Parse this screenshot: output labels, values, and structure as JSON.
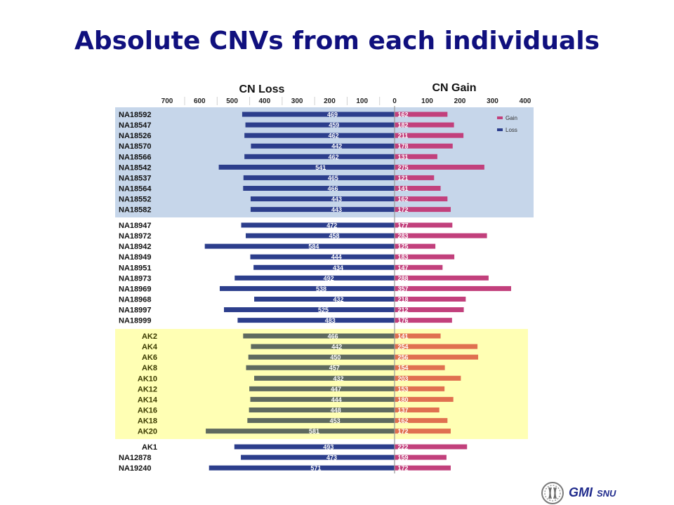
{
  "slide": {
    "title": "Absolute CNVs from each individuals"
  },
  "logo": {
    "gmi": "GMI",
    "snu": "SNU"
  },
  "chart_data": {
    "type": "bar",
    "orientation": "horizontal-diverging",
    "loss_axis_title": "CN Loss",
    "gain_axis_title": "CN Gain",
    "loss_ticks": [
      700,
      600,
      500,
      400,
      300,
      200,
      100
    ],
    "gain_ticks": [
      0,
      100,
      200,
      300,
      400
    ],
    "loss_xlim": [
      700,
      0
    ],
    "gain_xlim": [
      0,
      400
    ],
    "legend": {
      "position": "top-right",
      "entries": [
        "Gain",
        "Loss"
      ]
    },
    "colors": {
      "loss": "#2c3e8c",
      "gain": "#c2407c",
      "ak_loss": "#5f6a5f",
      "ak_gain": "#e07050",
      "group1_bg": "#c6d6ea",
      "group3_bg": "#ffffb4"
    },
    "groups": [
      {
        "rows": [
          {
            "label": "NA18592",
            "loss": 469,
            "gain": 162
          },
          {
            "label": "NA18547",
            "loss": 459,
            "gain": 182
          },
          {
            "label": "NA18526",
            "loss": 462,
            "gain": 211
          },
          {
            "label": "NA18570",
            "loss": 442,
            "gain": 178
          },
          {
            "label": "NA18566",
            "loss": 462,
            "gain": 131
          },
          {
            "label": "NA18542",
            "loss": 541,
            "gain": 275
          },
          {
            "label": "NA18537",
            "loss": 465,
            "gain": 121
          },
          {
            "label": "NA18564",
            "loss": 466,
            "gain": 141
          },
          {
            "label": "NA18552",
            "loss": 443,
            "gain": 162
          },
          {
            "label": "NA18582",
            "loss": 443,
            "gain": 172
          }
        ]
      },
      {
        "rows": [
          {
            "label": "NA18947",
            "loss": 472,
            "gain": 177
          },
          {
            "label": "NA18972",
            "loss": 458,
            "gain": 283
          },
          {
            "label": "NA18942",
            "loss": 584,
            "gain": 125
          },
          {
            "label": "NA18949",
            "loss": 444,
            "gain": 183
          },
          {
            "label": "NA18951",
            "loss": 434,
            "gain": 147
          },
          {
            "label": "NA18973",
            "loss": 492,
            "gain": 288
          },
          {
            "label": "NA18969",
            "loss": 538,
            "gain": 357
          },
          {
            "label": "NA18968",
            "loss": 432,
            "gain": 218
          },
          {
            "label": "NA18997",
            "loss": 525,
            "gain": 212
          },
          {
            "label": "NA18999",
            "loss": 483,
            "gain": 176
          }
        ]
      },
      {
        "rows": [
          {
            "label": "AK2",
            "loss": 466,
            "gain": 141
          },
          {
            "label": "AK4",
            "loss": 442,
            "gain": 254
          },
          {
            "label": "AK6",
            "loss": 450,
            "gain": 256
          },
          {
            "label": "AK8",
            "loss": 457,
            "gain": 154
          },
          {
            "label": "AK10",
            "loss": 432,
            "gain": 203
          },
          {
            "label": "AK12",
            "loss": 447,
            "gain": 153
          },
          {
            "label": "AK14",
            "loss": 444,
            "gain": 180
          },
          {
            "label": "AK16",
            "loss": 448,
            "gain": 137
          },
          {
            "label": "AK18",
            "loss": 453,
            "gain": 162
          },
          {
            "label": "AK20",
            "loss": 581,
            "gain": 172
          }
        ]
      },
      {
        "rows": [
          {
            "label": "AK1",
            "loss": 493,
            "gain": 222
          },
          {
            "label": "NA12878",
            "loss": 473,
            "gain": 159
          },
          {
            "label": "NA19240",
            "loss": 571,
            "gain": 172
          }
        ]
      }
    ]
  }
}
